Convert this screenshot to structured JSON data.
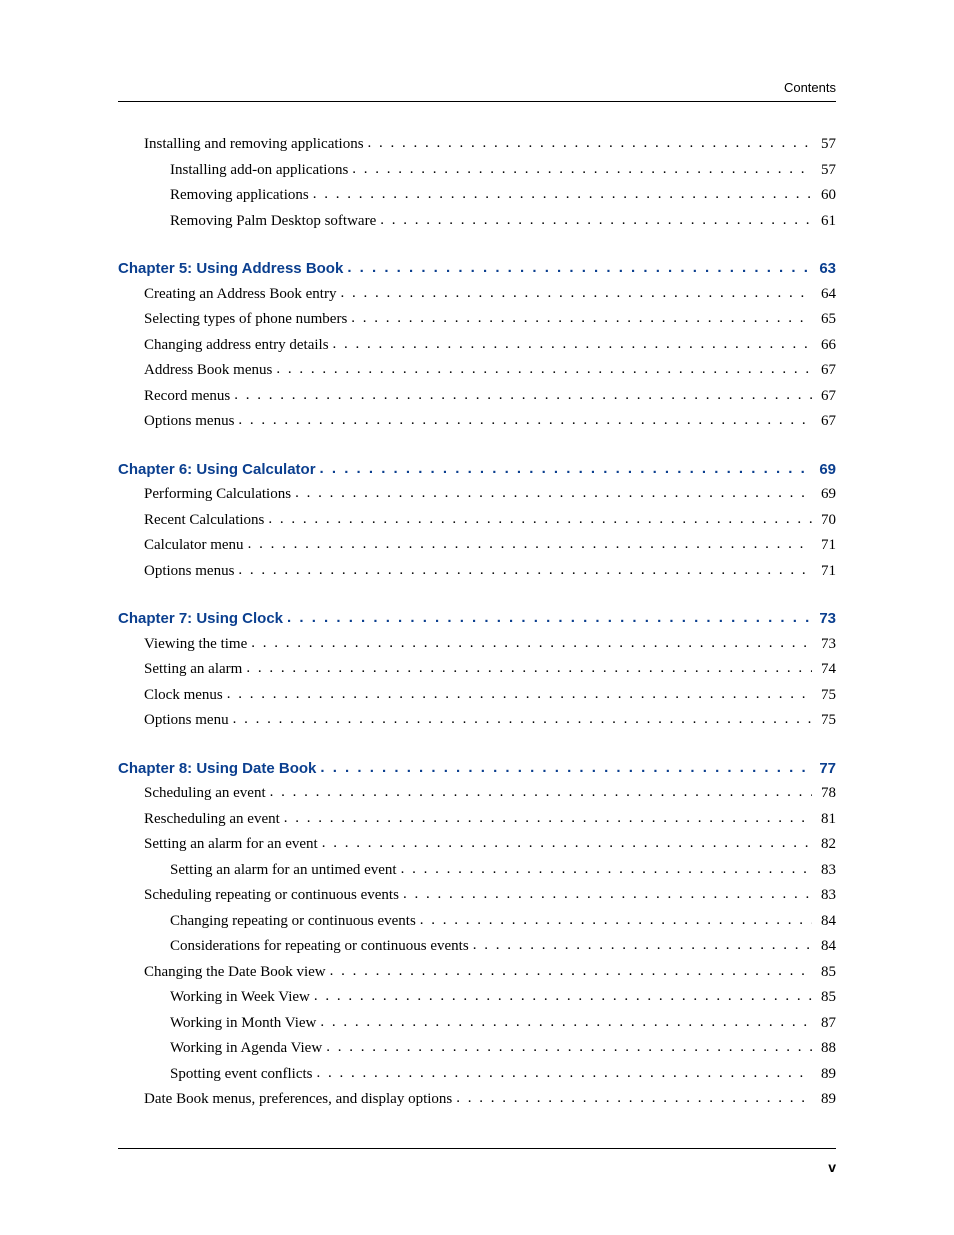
{
  "header": {
    "label": "Contents"
  },
  "footer": {
    "page": "v"
  },
  "colors": {
    "chapter_link": "#0b3f8f",
    "text": "#000000",
    "rule": "#000000",
    "background": "#ffffff"
  },
  "typography": {
    "body_family": "Book Antiqua / Palatino serif",
    "heading_family": "Arial / Helvetica sans-serif",
    "body_size_pt": 11,
    "chapter_size_pt": 11,
    "chapter_weight": "bold"
  },
  "toc": {
    "groups": [
      {
        "entries": [
          {
            "level": 0,
            "label": "Installing and removing applications",
            "page": "57"
          },
          {
            "level": 1,
            "label": "Installing add-on applications",
            "page": "57"
          },
          {
            "level": 1,
            "label": "Removing applications",
            "page": "60"
          },
          {
            "level": 1,
            "label": "Removing Palm Desktop software",
            "page": "61"
          }
        ]
      },
      {
        "chapter": {
          "label": "Chapter 5:  Using Address Book",
          "page": "63"
        },
        "entries": [
          {
            "level": 0,
            "label": "Creating an Address Book entry",
            "page": "64"
          },
          {
            "level": 0,
            "label": "Selecting types of phone numbers",
            "page": "65"
          },
          {
            "level": 0,
            "label": "Changing address entry details",
            "page": "66"
          },
          {
            "level": 0,
            "label": "Address Book menus",
            "page": "67"
          },
          {
            "level": 0,
            "label": "Record menus",
            "page": "67"
          },
          {
            "level": 0,
            "label": "Options menus",
            "page": "67"
          }
        ]
      },
      {
        "chapter": {
          "label": "Chapter 6:  Using Calculator",
          "page": "69"
        },
        "entries": [
          {
            "level": 0,
            "label": "Performing Calculations",
            "page": "69"
          },
          {
            "level": 0,
            "label": "Recent Calculations",
            "page": "70"
          },
          {
            "level": 0,
            "label": "Calculator menu",
            "page": "71"
          },
          {
            "level": 0,
            "label": "Options menus",
            "page": "71"
          }
        ]
      },
      {
        "chapter": {
          "label": "Chapter 7:  Using Clock",
          "page": "73"
        },
        "entries": [
          {
            "level": 0,
            "label": "Viewing the time",
            "page": "73"
          },
          {
            "level": 0,
            "label": "Setting an alarm",
            "page": "74"
          },
          {
            "level": 0,
            "label": "Clock menus",
            "page": "75"
          },
          {
            "level": 0,
            "label": "Options menu",
            "page": "75"
          }
        ]
      },
      {
        "chapter": {
          "label": "Chapter 8:  Using Date Book",
          "page": "77"
        },
        "entries": [
          {
            "level": 0,
            "label": "Scheduling an event",
            "page": "78"
          },
          {
            "level": 0,
            "label": "Rescheduling an event",
            "page": "81"
          },
          {
            "level": 0,
            "label": "Setting an alarm for an event",
            "page": "82"
          },
          {
            "level": 1,
            "label": "Setting an alarm for an untimed event",
            "page": "83"
          },
          {
            "level": 0,
            "label": "Scheduling repeating or continuous events",
            "page": "83"
          },
          {
            "level": 1,
            "label": "Changing repeating or continuous events",
            "page": "84"
          },
          {
            "level": 1,
            "label": "Considerations for repeating or continuous events",
            "page": "84"
          },
          {
            "level": 0,
            "label": "Changing the Date Book view",
            "page": "85"
          },
          {
            "level": 1,
            "label": "Working in Week View",
            "page": "85"
          },
          {
            "level": 1,
            "label": "Working in Month View",
            "page": "87"
          },
          {
            "level": 1,
            "label": "Working in Agenda View",
            "page": "88"
          },
          {
            "level": 1,
            "label": "Spotting event conflicts",
            "page": "89"
          },
          {
            "level": 0,
            "label": "Date Book menus, preferences, and display options",
            "page": "89"
          }
        ]
      }
    ]
  }
}
